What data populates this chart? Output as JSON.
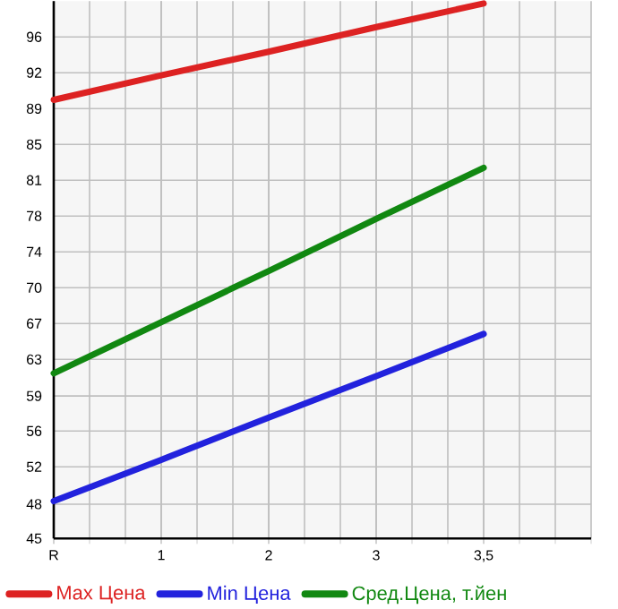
{
  "chart_data": {
    "type": "line",
    "categories": [
      "R",
      "1",
      "2",
      "3",
      "3,5"
    ],
    "series": [
      {
        "name": "Max Цена",
        "color": "#dd2222",
        "values": [
          89.6,
          92.1,
          94.5,
          97.0,
          99.4
        ]
      },
      {
        "name": "Min Цена",
        "color": "#2222dd",
        "values": [
          48.8,
          53.0,
          57.3,
          61.5,
          65.8
        ]
      },
      {
        "name": "Сред.Цена, т.йен",
        "color": "#118811",
        "values": [
          61.8,
          67.0,
          72.2,
          77.5,
          82.7
        ]
      }
    ],
    "ylim": [
      45,
      99.64
    ],
    "yticks": [
      45,
      {
        "value": 48.49,
        "label": "48"
      },
      {
        "value": 52.29,
        "label": "52"
      },
      {
        "value": 55.93,
        "label": "56"
      },
      {
        "value": 59.49,
        "label": "59"
      },
      {
        "value": 63.21,
        "label": "63"
      },
      {
        "value": 66.86,
        "label": "67"
      },
      {
        "value": 70.5,
        "label": "70"
      },
      {
        "value": 74.14,
        "label": "74"
      },
      {
        "value": 77.79,
        "label": "78"
      },
      {
        "value": 81.43,
        "label": "81"
      },
      {
        "value": 85.07,
        "label": "85"
      },
      {
        "value": 88.71,
        "label": "89"
      },
      {
        "value": 92.36,
        "label": "92"
      },
      96
    ],
    "grid": true,
    "legend": "bottom",
    "marker": "none",
    "line_style": "solid"
  }
}
